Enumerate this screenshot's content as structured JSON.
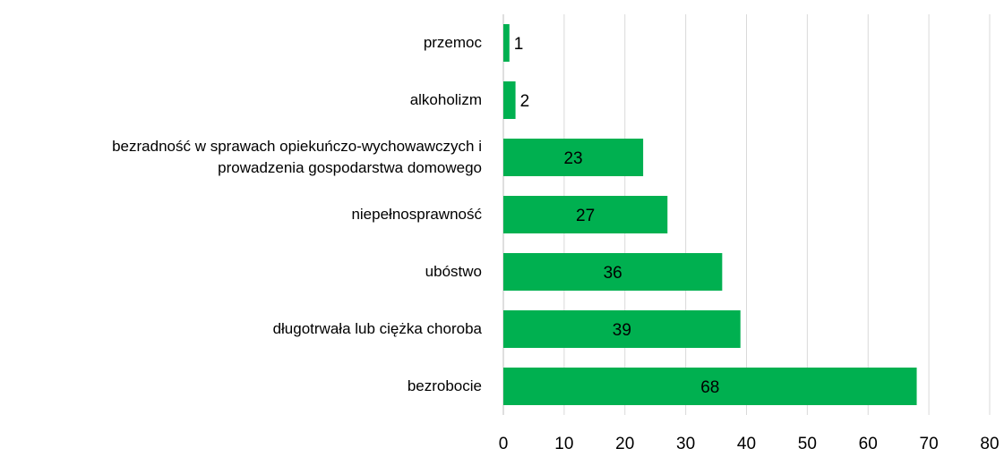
{
  "chart_data": {
    "type": "bar",
    "orientation": "horizontal",
    "categories": [
      "przemoc",
      "alkoholizm",
      "bezradność w sprawach opiekuńczo-wychowawczych i\nprowadzenia gospodarstwa domowego",
      "niepełnosprawność",
      "ubóstwo",
      "długotrwała lub ciężka choroba",
      "bezrobocie"
    ],
    "values": [
      1,
      2,
      23,
      27,
      36,
      39,
      68
    ],
    "color": "#00b050",
    "xlim": [
      0,
      80
    ],
    "xticks": [
      0,
      10,
      20,
      30,
      40,
      50,
      60,
      70,
      80
    ],
    "grid": true
  }
}
